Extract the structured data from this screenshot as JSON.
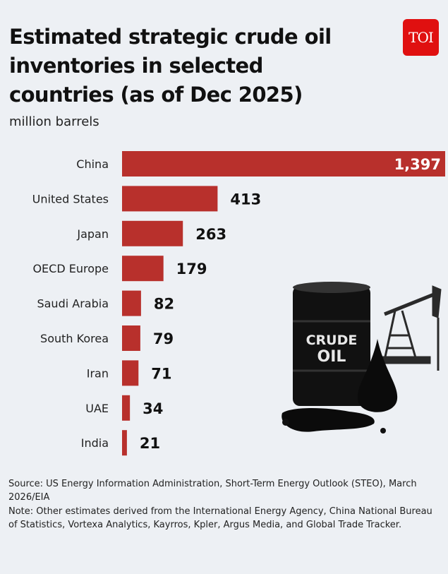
{
  "title": "Estimated strategic crude oil inventories in selected countries (as of Dec 2025)",
  "logo": "TOI",
  "chart_data": {
    "type": "bar",
    "orientation": "horizontal",
    "title": "Estimated strategic crude oil inventories in selected countries (as of Dec 2025)",
    "unit_label": "million barrels",
    "categories": [
      "China",
      "United States",
      "Japan",
      "OECD Europe",
      "Saudi Arabia",
      "South Korea",
      "Iran",
      "UAE",
      "India"
    ],
    "values": [
      1397,
      413,
      263,
      179,
      82,
      79,
      71,
      34,
      21
    ],
    "value_labels": [
      "1,397",
      "413",
      "263",
      "179",
      "82",
      "79",
      "71",
      "34",
      "21"
    ],
    "bar_color": "#b8302c",
    "xlim": [
      0,
      1397
    ],
    "grid": false
  },
  "illustration": {
    "barrel_text_1": "CRUDE",
    "barrel_text_2": "OIL"
  },
  "footer": {
    "source": "Source: US Energy Information Administration, Short-Term Energy Outlook (STEO), March 2026/EIA",
    "note": "Note: Other estimates derived from the International Energy Agency, China National Bureau of Statistics, Vortexa Analytics, Kayrros, Kpler, Argus Media, and Global Trade Tracker."
  }
}
